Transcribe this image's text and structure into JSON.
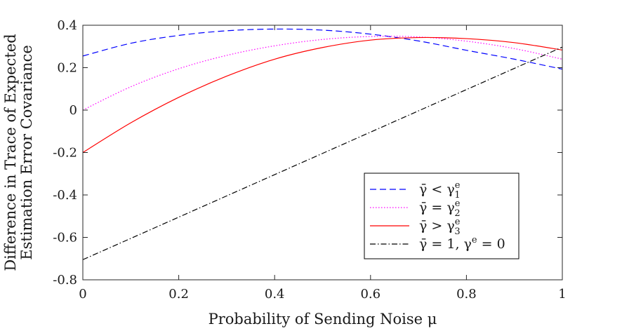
{
  "chart_data": {
    "type": "line",
    "title": "",
    "xlabel": "Probability of Sending Noise μ",
    "ylabel": [
      "Difference in Trace of Expected",
      "Estimation Error Covariance"
    ],
    "xlim": [
      0,
      1
    ],
    "ylim": [
      -0.8,
      0.4
    ],
    "xticks": [
      0,
      0.2,
      0.4,
      0.6,
      0.8,
      1
    ],
    "xtick_labels": [
      "0",
      "0.2",
      "0.4",
      "0.6",
      "0.8",
      "1"
    ],
    "yticks": [
      -0.8,
      -0.6,
      -0.4,
      -0.2,
      0,
      0.2,
      0.4
    ],
    "ytick_labels": [
      "-0.8",
      "-0.6",
      "-0.4",
      "-0.2",
      "0",
      "0.2",
      "0.4"
    ],
    "grid": false,
    "legend_position": "lower-right",
    "series": [
      {
        "name": "γ̄ < γ₁ᵉ",
        "legend": {
          "lhs": "γ̄",
          "op": "<",
          "rhs": "γ",
          "sub": "1",
          "sup": "e"
        },
        "color": "#0000ff",
        "style": "dashed",
        "x": [
          0,
          0.1,
          0.2,
          0.3,
          0.4,
          0.5,
          0.6,
          0.7,
          0.8,
          0.9,
          1.0
        ],
        "y": [
          0.255,
          0.315,
          0.352,
          0.374,
          0.382,
          0.377,
          0.358,
          0.326,
          0.282,
          0.24,
          0.193
        ]
      },
      {
        "name": "γ̄ = γ₂ᵉ",
        "legend": {
          "lhs": "γ̄",
          "op": "=",
          "rhs": "γ",
          "sub": "2",
          "sup": "e"
        },
        "color": "#ff00ff",
        "style": "dotted",
        "x": [
          0,
          0.1,
          0.2,
          0.3,
          0.4,
          0.5,
          0.6,
          0.7,
          0.8,
          0.9,
          1.0
        ],
        "y": [
          0.0,
          0.11,
          0.195,
          0.258,
          0.303,
          0.333,
          0.347,
          0.345,
          0.325,
          0.29,
          0.24
        ]
      },
      {
        "name": "γ̄ > γ₃ᵉ",
        "legend": {
          "lhs": "γ̄",
          "op": ">",
          "rhs": "γ",
          "sub": "3",
          "sup": "e"
        },
        "color": "#ff0000",
        "style": "solid",
        "x": [
          0,
          0.1,
          0.2,
          0.3,
          0.4,
          0.5,
          0.6,
          0.7,
          0.8,
          0.9,
          1.0
        ],
        "y": [
          -0.2,
          -0.06,
          0.06,
          0.16,
          0.24,
          0.295,
          0.33,
          0.342,
          0.337,
          0.318,
          0.283
        ]
      },
      {
        "name": "γ̄ = 1, γᵉ = 0",
        "legend": {
          "lhs": "γ̄",
          "op": "=",
          "rhs": "1,  γ",
          "sub": "",
          "sup": "e",
          "tail": " = 0"
        },
        "color": "#000000",
        "style": "dashdot",
        "x": [
          0,
          1.0
        ],
        "y": [
          -0.705,
          0.297
        ]
      }
    ]
  }
}
